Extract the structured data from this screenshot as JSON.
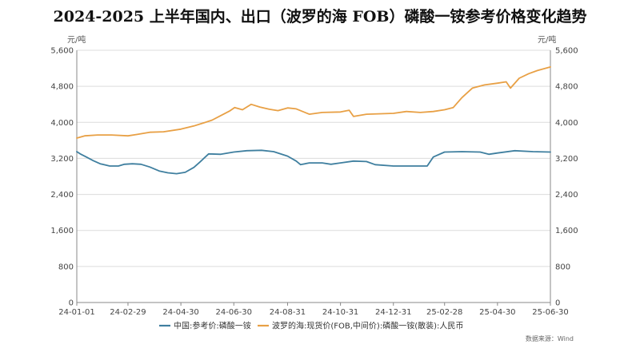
{
  "chart_data": {
    "type": "line",
    "title": "2024-2025 上半年国内、出口（波罗的海 FOB）磷酸一铵参考价格变化趋势",
    "y_unit_left": "元/吨",
    "y_unit_right": "元/吨",
    "ylim": [
      0,
      5600
    ],
    "y_ticks": [
      0,
      800,
      1600,
      2400,
      3200,
      4000,
      4800,
      5600
    ],
    "y_tick_labels": [
      "0",
      "800",
      "1,600",
      "2,400",
      "3,200",
      "4,000",
      "4,800",
      "5,600"
    ],
    "x_ticks": [
      "24-01-01",
      "24-02-29",
      "24-04-30",
      "24-06-30",
      "24-08-31",
      "24-10-31",
      "24-12-31",
      "25-02-28",
      "25-04-30",
      "25-06-30"
    ],
    "grid": "horizontal",
    "legend_position": "bottom",
    "source_note": "数据来源：Wind",
    "series": [
      {
        "name": "中国:参考价:磷酸一铵",
        "color": "#3f7f9f",
        "points": [
          [
            "24-01-01",
            3350
          ],
          [
            "24-01-05",
            3300
          ],
          [
            "24-01-12",
            3230
          ],
          [
            "24-01-20",
            3150
          ],
          [
            "24-01-28",
            3080
          ],
          [
            "24-02-08",
            3030
          ],
          [
            "24-02-18",
            3030
          ],
          [
            "24-02-25",
            3070
          ],
          [
            "24-03-05",
            3080
          ],
          [
            "24-03-15",
            3070
          ],
          [
            "24-03-25",
            3010
          ],
          [
            "24-04-05",
            2920
          ],
          [
            "24-04-15",
            2880
          ],
          [
            "24-04-25",
            2860
          ],
          [
            "24-05-05",
            2890
          ],
          [
            "24-05-15",
            3000
          ],
          [
            "24-05-22",
            3120
          ],
          [
            "24-06-01",
            3300
          ],
          [
            "24-06-15",
            3290
          ],
          [
            "24-06-30",
            3340
          ],
          [
            "24-07-15",
            3370
          ],
          [
            "24-08-01",
            3380
          ],
          [
            "24-08-15",
            3350
          ],
          [
            "24-08-31",
            3250
          ],
          [
            "24-09-10",
            3140
          ],
          [
            "24-09-15",
            3060
          ],
          [
            "24-09-25",
            3100
          ],
          [
            "24-10-10",
            3100
          ],
          [
            "24-10-20",
            3070
          ],
          [
            "24-10-31",
            3100
          ],
          [
            "24-11-15",
            3140
          ],
          [
            "24-11-30",
            3130
          ],
          [
            "24-12-10",
            3060
          ],
          [
            "24-12-31",
            3030
          ],
          [
            "25-01-20",
            3030
          ],
          [
            "25-02-08",
            3030
          ],
          [
            "25-02-15",
            3230
          ],
          [
            "25-02-28",
            3340
          ],
          [
            "25-03-20",
            3350
          ],
          [
            "25-04-10",
            3340
          ],
          [
            "25-04-20",
            3290
          ],
          [
            "25-04-30",
            3320
          ],
          [
            "25-05-20",
            3370
          ],
          [
            "25-06-10",
            3350
          ],
          [
            "25-06-30",
            3340
          ]
        ]
      },
      {
        "name": "波罗的海:现货价(FOB,中间价):磷酸一铵(散装):人民币",
        "color": "#e8a045",
        "points": [
          [
            "24-01-01",
            3650
          ],
          [
            "24-01-10",
            3700
          ],
          [
            "24-01-25",
            3720
          ],
          [
            "24-02-10",
            3720
          ],
          [
            "24-02-29",
            3700
          ],
          [
            "24-03-10",
            3730
          ],
          [
            "24-03-25",
            3780
          ],
          [
            "24-04-10",
            3790
          ],
          [
            "24-04-30",
            3850
          ],
          [
            "24-05-15",
            3920
          ],
          [
            "24-05-25",
            3980
          ],
          [
            "24-06-05",
            4050
          ],
          [
            "24-06-15",
            4150
          ],
          [
            "24-06-25",
            4250
          ],
          [
            "24-07-01",
            4330
          ],
          [
            "24-07-10",
            4280
          ],
          [
            "24-07-20",
            4400
          ],
          [
            "24-07-30",
            4340
          ],
          [
            "24-08-10",
            4290
          ],
          [
            "24-08-20",
            4260
          ],
          [
            "24-08-31",
            4320
          ],
          [
            "24-09-10",
            4300
          ],
          [
            "24-09-25",
            4180
          ],
          [
            "24-10-10",
            4220
          ],
          [
            "24-10-31",
            4230
          ],
          [
            "24-11-10",
            4270
          ],
          [
            "24-11-15",
            4130
          ],
          [
            "24-11-30",
            4180
          ],
          [
            "24-12-31",
            4200
          ],
          [
            "25-01-15",
            4240
          ],
          [
            "25-01-31",
            4220
          ],
          [
            "25-02-15",
            4240
          ],
          [
            "25-02-28",
            4280
          ],
          [
            "25-03-10",
            4330
          ],
          [
            "25-03-20",
            4550
          ],
          [
            "25-04-01",
            4760
          ],
          [
            "25-04-15",
            4830
          ],
          [
            "25-04-30",
            4870
          ],
          [
            "25-05-10",
            4900
          ],
          [
            "25-05-15",
            4760
          ],
          [
            "25-05-25",
            4980
          ],
          [
            "25-06-05",
            5080
          ],
          [
            "25-06-15",
            5150
          ],
          [
            "25-06-30",
            5230
          ]
        ]
      }
    ]
  }
}
